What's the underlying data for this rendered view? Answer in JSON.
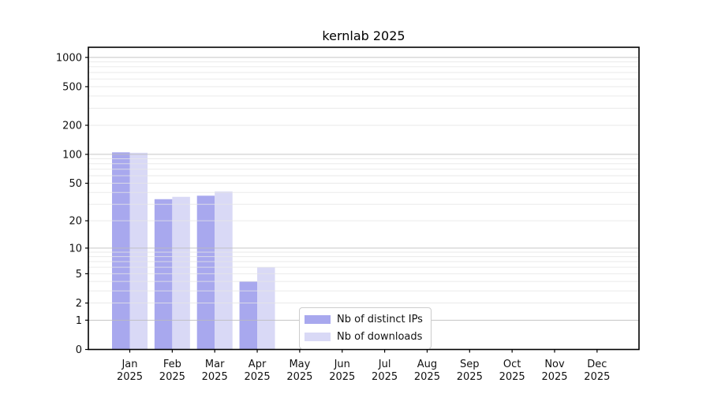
{
  "title": "kernlab 2025",
  "colors": {
    "ips": "#a8a8ee",
    "downloads": "#d9d9f6",
    "grid_major": "#bcbcbc",
    "grid_minor": "#e6e6e6",
    "axis": "#000000",
    "tick_text": "#111111",
    "legend_border": "#cccccc",
    "background": "#ffffff"
  },
  "legend": {
    "items": [
      {
        "label": "Nb of distinct IPs",
        "color_key": "ips"
      },
      {
        "label": "Nb of downloads",
        "color_key": "downloads"
      }
    ],
    "position": "lower center"
  },
  "x_axis": {
    "months": [
      "Jan",
      "Feb",
      "Mar",
      "Apr",
      "May",
      "Jun",
      "Jul",
      "Aug",
      "Sep",
      "Oct",
      "Nov",
      "Dec"
    ],
    "year": "2025"
  },
  "y_axis": {
    "tick_values": [
      0,
      1,
      2,
      5,
      10,
      20,
      50,
      100,
      200,
      500,
      1000
    ],
    "tick_labels": [
      "0",
      "1",
      "2",
      "5",
      "10",
      "20",
      "50",
      "100",
      "200",
      "500",
      "1000"
    ],
    "minor_grid_values": [
      2,
      3,
      4,
      5,
      6,
      7,
      8,
      9,
      20,
      30,
      40,
      50,
      60,
      70,
      80,
      90,
      200,
      300,
      400,
      500,
      600,
      700,
      800,
      900
    ],
    "major_grid_values": [
      1,
      10,
      100,
      1000
    ],
    "scale": "log1p"
  },
  "chart_data": {
    "type": "bar",
    "title": "kernlab 2025",
    "categories": [
      "Jan 2025",
      "Feb 2025",
      "Mar 2025",
      "Apr 2025",
      "May 2025",
      "Jun 2025",
      "Jul 2025",
      "Aug 2025",
      "Sep 2025",
      "Oct 2025",
      "Nov 2025",
      "Dec 2025"
    ],
    "series": [
      {
        "name": "Nb of distinct IPs",
        "key": "ips",
        "values": [
          105,
          34,
          37,
          4,
          0,
          0,
          0,
          0,
          0,
          0,
          0,
          0
        ]
      },
      {
        "name": "Nb of downloads",
        "key": "downloads",
        "values": [
          104,
          36,
          41,
          6,
          0,
          0,
          0,
          0,
          0,
          0,
          0,
          0
        ]
      }
    ],
    "xlabel": "",
    "ylabel": "",
    "yticks": [
      0,
      1,
      2,
      5,
      10,
      20,
      50,
      100,
      200,
      500,
      1000
    ],
    "ylim": [
      0,
      1280
    ],
    "yscale": "log1p",
    "grid": "horizontal major+minor",
    "legend_position": "lower center"
  }
}
